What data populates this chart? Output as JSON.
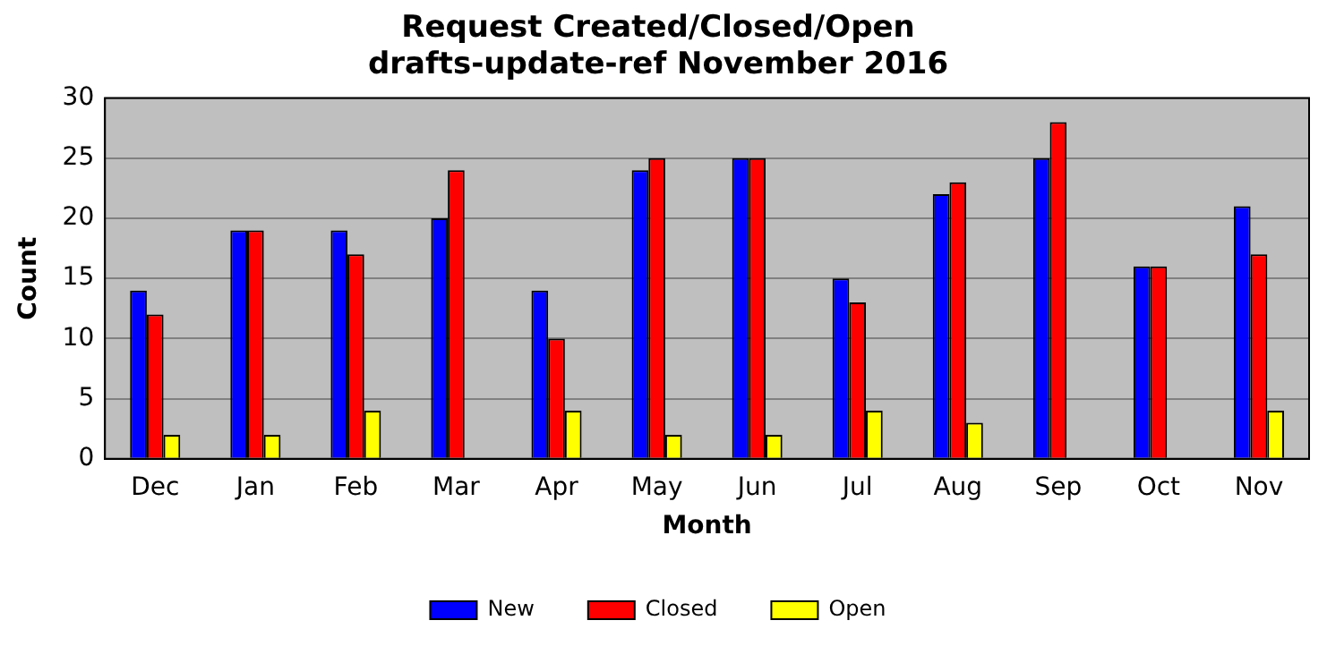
{
  "chart_data": {
    "type": "bar",
    "title": "Request Created/Closed/Open",
    "subtitle": "drafts-update-ref November 2016",
    "xlabel": "Month",
    "ylabel": "Count",
    "categories": [
      "Dec",
      "Jan",
      "Feb",
      "Mar",
      "Apr",
      "May",
      "Jun",
      "Jul",
      "Aug",
      "Sep",
      "Oct",
      "Nov"
    ],
    "series": [
      {
        "name": "New",
        "color": "#0000ff",
        "values": [
          14,
          19,
          19,
          20,
          14,
          24,
          25,
          15,
          22,
          25,
          16,
          21
        ]
      },
      {
        "name": "Closed",
        "color": "#ff0000",
        "values": [
          12,
          19,
          17,
          24,
          10,
          25,
          25,
          13,
          23,
          28,
          16,
          17
        ]
      },
      {
        "name": "Open",
        "color": "#ffff00",
        "values": [
          2,
          2,
          4,
          0,
          4,
          2,
          2,
          4,
          3,
          0,
          0,
          4
        ]
      }
    ],
    "ylim": [
      0,
      30
    ],
    "yticks": [
      0,
      5,
      10,
      15,
      20,
      25,
      30
    ],
    "grid": "y",
    "legend": "bottom"
  }
}
